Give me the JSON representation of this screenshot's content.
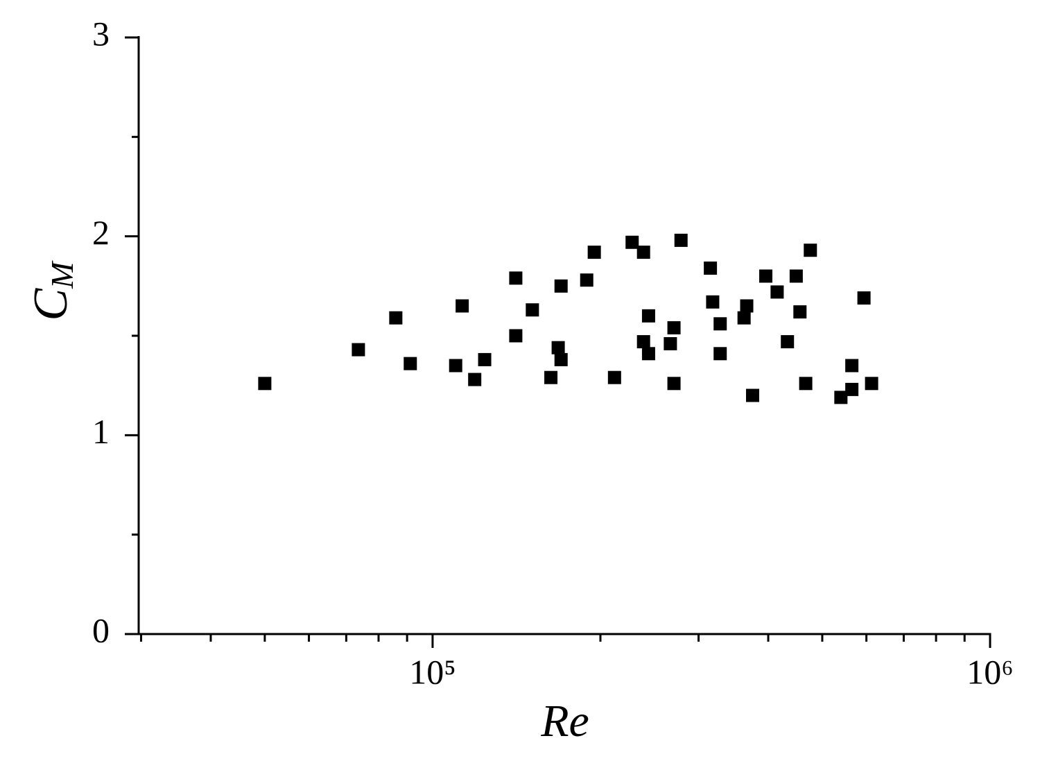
{
  "chart_data": {
    "type": "scatter",
    "xlabel": "Re",
    "ylabel": "C",
    "ylabel_subscript": "M",
    "x": [
      50000,
      73600,
      85900,
      91200,
      110000,
      113000,
      119000,
      124000,
      141000,
      141000,
      151000,
      163000,
      168000,
      170000,
      170000,
      189000,
      195000,
      212000,
      228000,
      239000,
      239000,
      244000,
      244000,
      267000,
      271000,
      271000,
      279000,
      315000,
      318000,
      328000,
      328000,
      362000,
      366000,
      375000,
      396000,
      415000,
      433000,
      449000,
      456000,
      467000,
      476000,
      540000,
      565000,
      565000,
      594000,
      613000
    ],
    "values": [
      1.26,
      1.43,
      1.59,
      1.36,
      1.35,
      1.65,
      1.28,
      1.38,
      1.79,
      1.5,
      1.63,
      1.29,
      1.44,
      1.75,
      1.38,
      1.78,
      1.92,
      1.29,
      1.97,
      1.92,
      1.47,
      1.6,
      1.41,
      1.46,
      1.54,
      1.26,
      1.98,
      1.84,
      1.67,
      1.56,
      1.41,
      1.59,
      1.65,
      1.2,
      1.8,
      1.72,
      1.47,
      1.8,
      1.62,
      1.26,
      1.93,
      1.19,
      1.35,
      1.23,
      1.69,
      1.26
    ],
    "color": "#000000",
    "xscale": "log",
    "xlim": [
      29700,
      1000000
    ],
    "xticks": [
      {
        "value": 100000,
        "label": "10⁵"
      },
      {
        "value": 1000000,
        "label": "10⁶"
      }
    ],
    "xminorticks": [
      30000,
      40000,
      50000,
      60000,
      70000,
      80000,
      90000,
      200000,
      300000,
      400000,
      500000,
      600000,
      700000,
      800000,
      900000
    ],
    "ylim": [
      0,
      3
    ],
    "yticks": [
      0,
      1,
      2,
      3
    ],
    "yminorticks": [
      0.5,
      1.5,
      2.5
    ],
    "grid": false
  }
}
